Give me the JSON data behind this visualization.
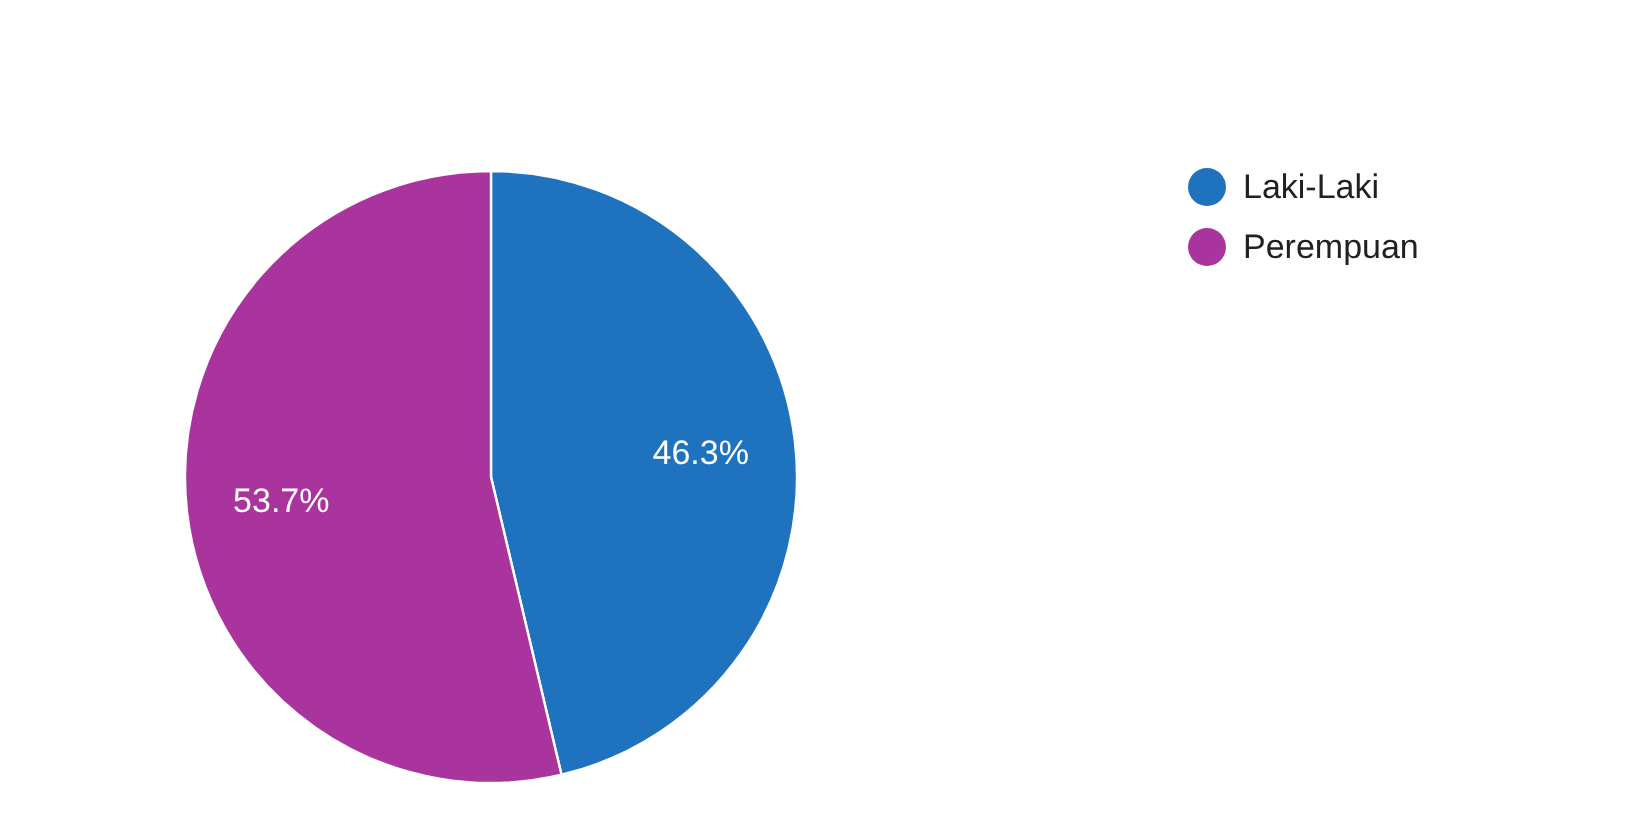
{
  "chart_data": {
    "type": "pie",
    "categories": [
      "Laki-Laki",
      "Perempuan"
    ],
    "values": [
      46.3,
      53.7
    ],
    "colors": [
      "#1f72be",
      "#aa349e"
    ],
    "value_labels": [
      "46.3%",
      "53.7%"
    ],
    "legend": "top right"
  }
}
